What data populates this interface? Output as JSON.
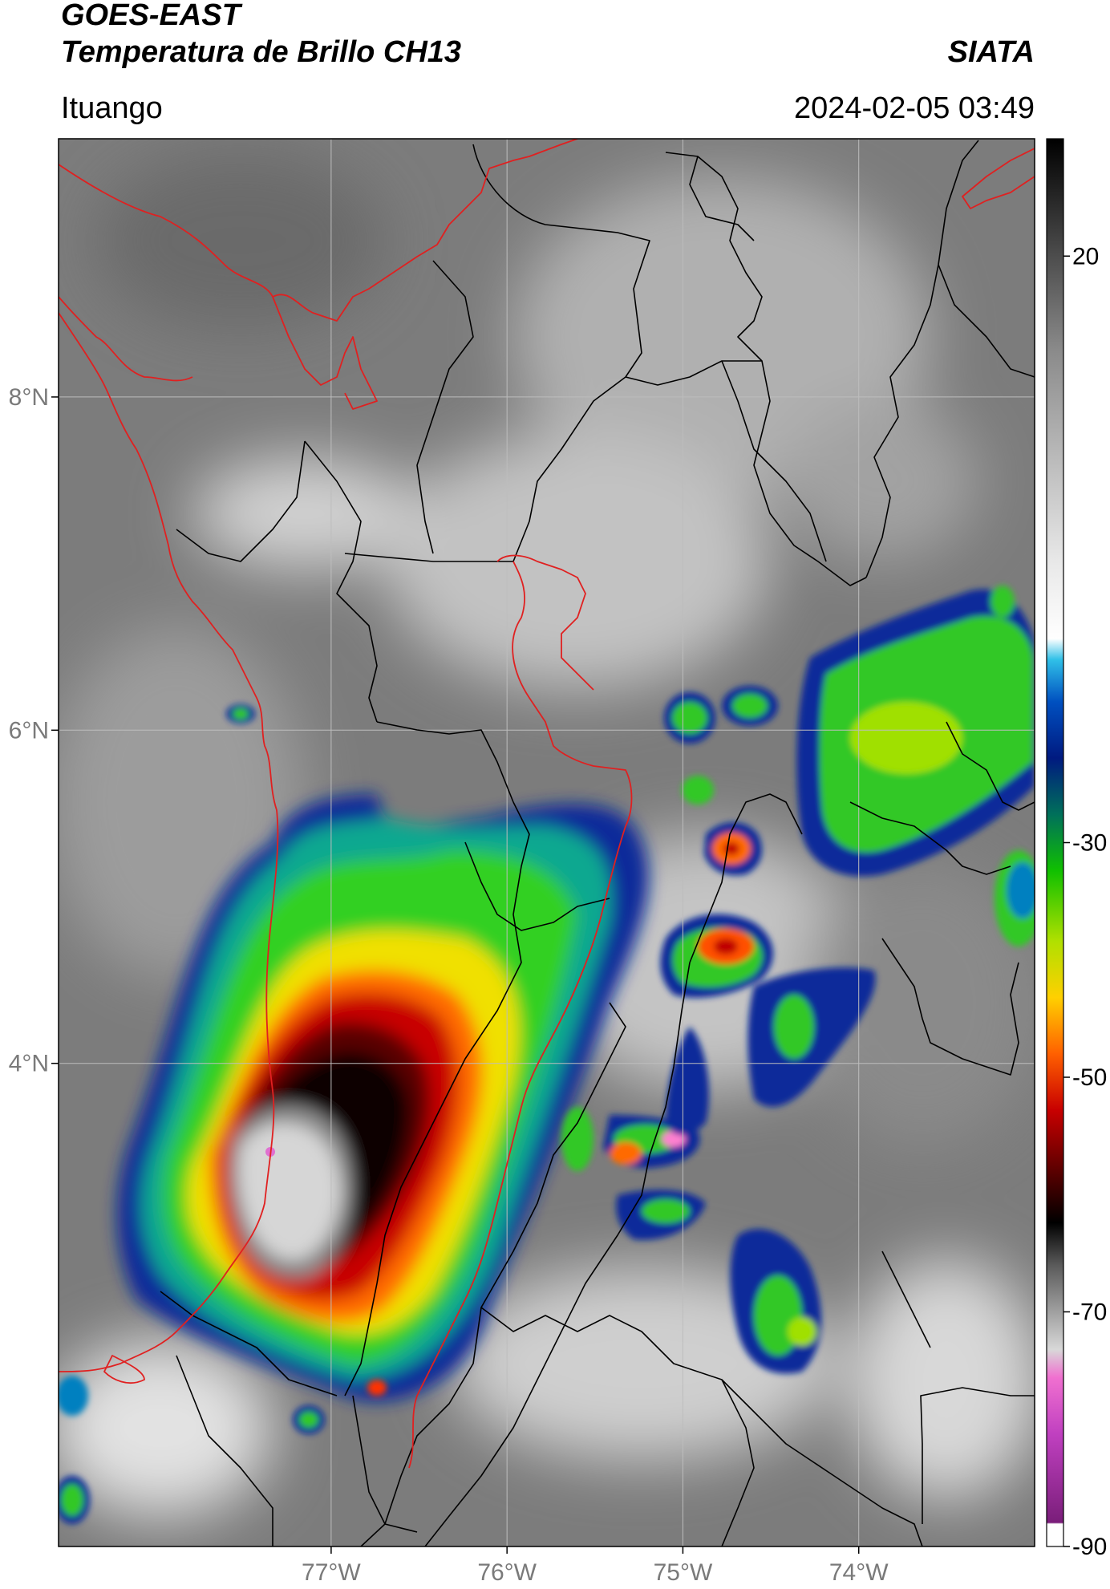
{
  "header": {
    "title_line1": "GOES-EAST",
    "title_line2": "Temperatura de Brillo CH13",
    "source": "SIATA",
    "location": "Ituango",
    "datetime": "2024-02-05 03:49"
  },
  "map": {
    "extent": {
      "lon_min": -78.55,
      "lon_max": -73.0,
      "lat_min": 1.1,
      "lat_max": 9.55
    },
    "lon_ticks": [
      -77,
      -76,
      -75,
      -74
    ],
    "lon_tick_labels": [
      "77°W",
      "76°W",
      "75°W",
      "74°W"
    ],
    "lat_ticks": [
      4,
      6,
      8
    ],
    "lat_tick_labels": [
      "4°N",
      "6°N",
      "8°N"
    ],
    "gridlines": true,
    "colors": {
      "national_border": "#e02020",
      "department_border": "#000000",
      "gridline": "#bdbdbd"
    }
  },
  "colorbar": {
    "vmin": -90,
    "vmax": 30,
    "tick_values": [
      20,
      -30,
      -50,
      -70,
      -90
    ],
    "tick_labels": [
      "20",
      "-30",
      "-50",
      "-70",
      "-90"
    ]
  }
}
